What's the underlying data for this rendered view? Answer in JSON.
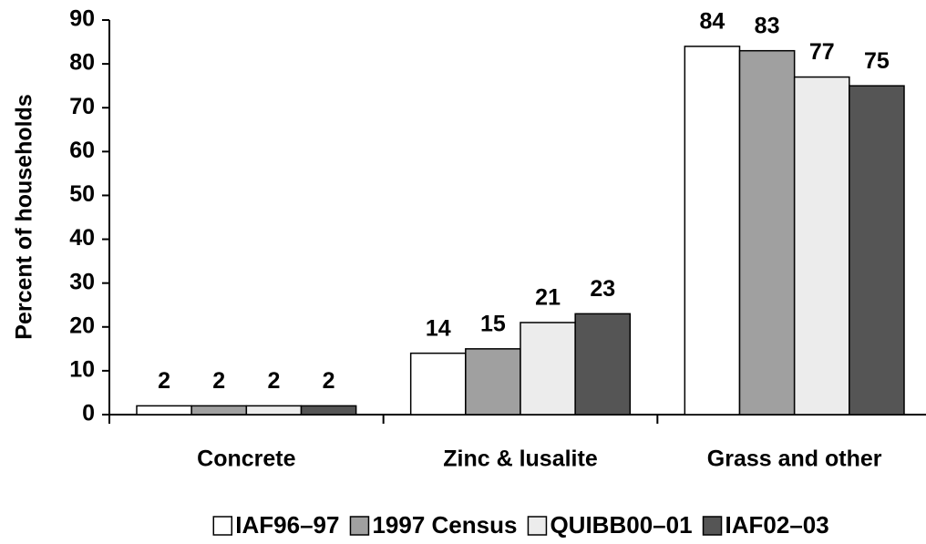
{
  "chart_data": {
    "type": "bar",
    "y_label": "Percent of households",
    "categories": [
      "Concrete",
      "Zinc & lusalite",
      "Grass and other"
    ],
    "series": [
      {
        "name": "IAF96–97",
        "color": "#ffffff",
        "values": [
          2,
          14,
          84
        ]
      },
      {
        "name": "1997 Census",
        "color": "#a0a0a0",
        "values": [
          2,
          15,
          83
        ]
      },
      {
        "name": "QUIBB00–01",
        "color": "#ececec",
        "values": [
          2,
          21,
          77
        ]
      },
      {
        "name": "IAF02–03",
        "color": "#555555",
        "values": [
          2,
          23,
          75
        ]
      }
    ],
    "ylim": [
      0,
      90
    ],
    "yticks": [
      0,
      10,
      20,
      30,
      40,
      50,
      60,
      70,
      80,
      90
    ],
    "grid": false,
    "legend": "bottom"
  }
}
